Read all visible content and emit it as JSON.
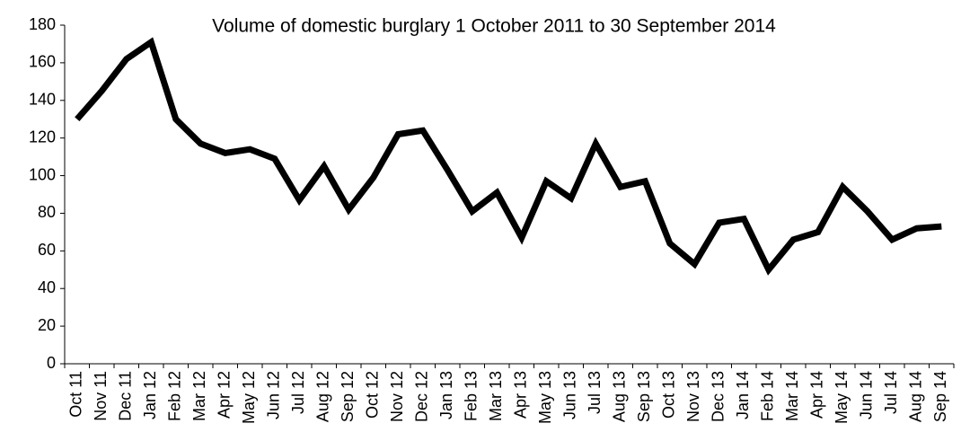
{
  "chart_data": {
    "type": "line",
    "title": "Volume of domestic burglary 1 October 2011 to 30 September 2014",
    "categories": [
      "Oct 11",
      "Nov 11",
      "Dec 11",
      "Jan 12",
      "Feb 12",
      "Mar 12",
      "Apr 12",
      "May 12",
      "Jun 12",
      "Jul 12",
      "Aug 12",
      "Sep 12",
      "Oct 12",
      "Nov 12",
      "Dec 12",
      "Jan 13",
      "Feb 13",
      "Mar 13",
      "Apr 13",
      "May 13",
      "Jun 13",
      "Jul 13",
      "Aug 13",
      "Sep 13",
      "Oct 13",
      "Nov 13",
      "Dec 13",
      "Jan 14",
      "Feb 14",
      "Mar 14",
      "Apr 14",
      "May 14",
      "Jun 14",
      "Jul 14",
      "Aug 14",
      "Sep 14"
    ],
    "values": [
      130,
      145,
      162,
      171,
      130,
      117,
      112,
      114,
      109,
      87,
      105,
      82,
      99,
      122,
      124,
      103,
      81,
      91,
      67,
      97,
      88,
      117,
      94,
      97,
      64,
      53,
      75,
      77,
      50,
      66,
      70,
      94,
      81,
      66,
      72,
      73
    ],
    "color": "#000000",
    "ylim": [
      0,
      180
    ],
    "yticks": [
      0,
      20,
      40,
      60,
      80,
      100,
      120,
      140,
      160,
      180
    ],
    "grid": false
  }
}
